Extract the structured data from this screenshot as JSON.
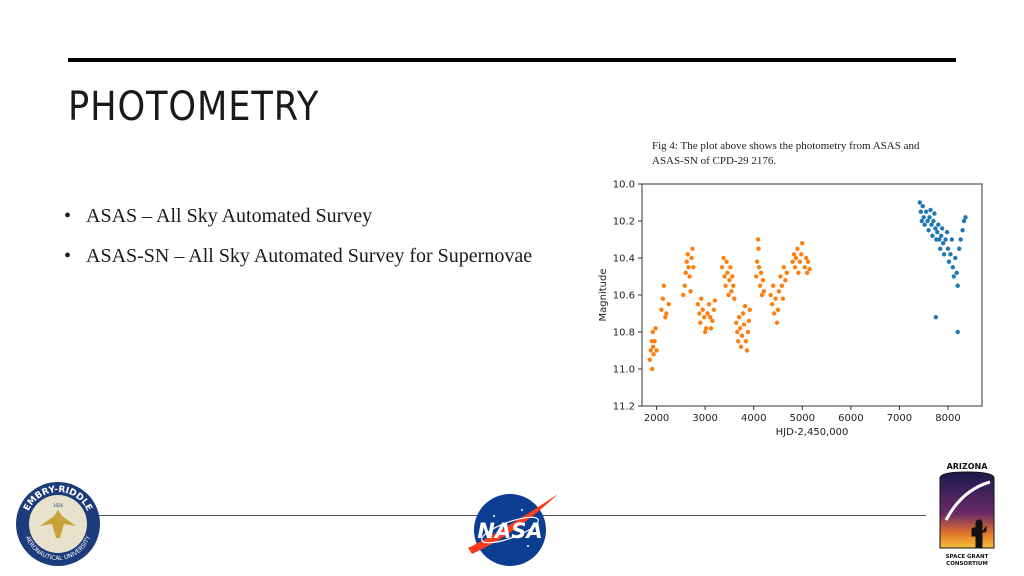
{
  "slide": {
    "title": "PHOTOMETRY",
    "bullets": [
      "ASAS – All Sky Automated Survey",
      "ASAS-SN – All Sky Automated Survey for Supernovae"
    ],
    "caption": "Fig 4: The plot above shows the photometry from ASAS and ASAS-SN of CPD-29 2176."
  },
  "logos": {
    "erau": {
      "top": "EMBRY-RIDDLE",
      "bottom": "AERONAUTICAL UNIVERSITY",
      "year": "1926"
    },
    "nasa": {
      "text": "NASA"
    },
    "azspace": {
      "top": "ARIZONA",
      "bottom1": "SPACE GRANT",
      "bottom2": "CONSORTIUM"
    }
  },
  "chart_data": {
    "type": "scatter",
    "xlabel": "HJD-2,450,000",
    "ylabel": "Magnitude",
    "xlim": [
      1700,
      8700
    ],
    "ylim": [
      11.2,
      10.0
    ],
    "y_inverted": true,
    "xticks": [
      2000,
      3000,
      4000,
      5000,
      6000,
      7000,
      8000
    ],
    "yticks": [
      10.0,
      10.2,
      10.4,
      10.6,
      10.8,
      11.0,
      11.2
    ],
    "ytick_labels": [
      "10.0",
      "10.2",
      "10.4",
      "10.6",
      "10.8",
      "11.0",
      "11.2"
    ],
    "grid": false,
    "series": [
      {
        "color": "#ff7f0e",
        "x": [
          1860,
          1880,
          1900,
          1910,
          1920,
          1930,
          1940,
          1960,
          1980,
          2000,
          2100,
          2130,
          2150,
          2180,
          2200,
          2250,
          2550,
          2580,
          2600,
          2620,
          2640,
          2660,
          2680,
          2700,
          2720,
          2740,
          2760,
          2850,
          2880,
          2900,
          2920,
          2950,
          2980,
          3000,
          3020,
          3050,
          3080,
          3100,
          3120,
          3150,
          3180,
          3200,
          3350,
          3380,
          3400,
          3420,
          3440,
          3460,
          3480,
          3500,
          3520,
          3540,
          3560,
          3580,
          3600,
          3640,
          3660,
          3680,
          3700,
          3720,
          3740,
          3760,
          3780,
          3800,
          3820,
          3840,
          3860,
          3880,
          3900,
          3920,
          4050,
          4070,
          4090,
          4100,
          4110,
          4130,
          4150,
          4170,
          4190,
          4210,
          4350,
          4380,
          4400,
          4420,
          4450,
          4480,
          4500,
          4520,
          4550,
          4580,
          4600,
          4620,
          4650,
          4680,
          4800,
          4830,
          4850,
          4870,
          4900,
          4920,
          4950,
          4980,
          5000,
          5050,
          5080,
          5100,
          5120,
          5150
        ],
        "y": [
          10.95,
          10.9,
          10.85,
          11.0,
          10.8,
          10.88,
          10.92,
          10.85,
          10.78,
          10.9,
          10.68,
          10.62,
          10.55,
          10.72,
          10.7,
          10.65,
          10.6,
          10.55,
          10.48,
          10.42,
          10.38,
          10.45,
          10.5,
          10.58,
          10.4,
          10.35,
          10.45,
          10.65,
          10.7,
          10.75,
          10.62,
          10.68,
          10.72,
          10.8,
          10.78,
          10.7,
          10.65,
          10.72,
          10.78,
          10.74,
          10.68,
          10.63,
          10.45,
          10.4,
          10.5,
          10.55,
          10.42,
          10.48,
          10.6,
          10.52,
          10.45,
          10.58,
          10.5,
          10.55,
          10.62,
          10.75,
          10.8,
          10.85,
          10.72,
          10.78,
          10.88,
          10.82,
          10.7,
          10.76,
          10.66,
          10.85,
          10.9,
          10.8,
          10.74,
          10.68,
          10.5,
          10.42,
          10.3,
          10.35,
          10.45,
          10.55,
          10.48,
          10.6,
          10.52,
          10.58,
          10.6,
          10.65,
          10.55,
          10.7,
          10.62,
          10.75,
          10.68,
          10.58,
          10.5,
          10.55,
          10.62,
          10.45,
          10.52,
          10.48,
          10.42,
          10.38,
          10.45,
          10.4,
          10.35,
          10.48,
          10.42,
          10.38,
          10.32,
          10.45,
          10.4,
          10.48,
          10.42,
          10.46
        ]
      },
      {
        "color": "#1f77b4",
        "x": [
          7420,
          7440,
          7460,
          7480,
          7500,
          7520,
          7550,
          7580,
          7600,
          7620,
          7640,
          7660,
          7680,
          7700,
          7720,
          7740,
          7760,
          7780,
          7800,
          7820,
          7840,
          7860,
          7880,
          7900,
          7920,
          7950,
          7980,
          8000,
          8020,
          8050,
          8080,
          8100,
          8120,
          8150,
          8180,
          8200,
          8230,
          8260,
          8300,
          8330,
          8360,
          7750,
          8200
        ],
        "y": [
          10.1,
          10.15,
          10.2,
          10.12,
          10.18,
          10.22,
          10.15,
          10.2,
          10.25,
          10.18,
          10.14,
          10.22,
          10.28,
          10.2,
          10.16,
          10.24,
          10.3,
          10.26,
          10.22,
          10.3,
          10.35,
          10.28,
          10.24,
          10.32,
          10.38,
          10.3,
          10.26,
          10.35,
          10.42,
          10.38,
          10.3,
          10.45,
          10.5,
          10.4,
          10.48,
          10.55,
          10.35,
          10.3,
          10.25,
          10.2,
          10.18,
          10.72,
          10.8
        ]
      }
    ]
  }
}
